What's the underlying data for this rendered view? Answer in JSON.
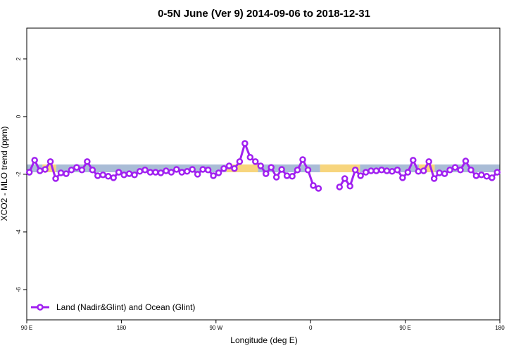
{
  "chart_data": {
    "type": "line",
    "title": "0-5N June (Ver 9)   2014-09-06 to 2018-12-31",
    "x_label": "Longitude (deg E)",
    "y_label": "XCO2 - MLO trend (ppm)",
    "xlim": [
      90,
      540
    ],
    "ylim": [
      -7.05,
      3.07
    ],
    "xticks": [
      {
        "value": 90,
        "label": "90 E"
      },
      {
        "value": 180,
        "label": "180"
      },
      {
        "value": 270,
        "label": "90 W"
      },
      {
        "value": 360,
        "label": "0"
      },
      {
        "value": 450,
        "label": "90 E"
      },
      {
        "value": 540,
        "label": "180"
      }
    ],
    "yticks": [
      -6,
      -4,
      -2,
      0,
      2
    ],
    "legend": "bottom-left",
    "ribbon": {
      "ylim": [
        -1.66,
        -1.93
      ],
      "segments": [
        {
          "xlim": [
            90,
            105
          ],
          "color": "#a9bcd6"
        },
        {
          "xlim": [
            105,
            118
          ],
          "color": "#f7d57d"
        },
        {
          "xlim": [
            118,
            280
          ],
          "color": "#a9bcd6"
        },
        {
          "xlim": [
            280,
            310
          ],
          "color": "#f7d57d"
        },
        {
          "xlim": [
            310,
            369
          ],
          "color": "#a9bcd6"
        },
        {
          "xlim": [
            369,
            407
          ],
          "color": "#f7d57d"
        },
        {
          "xlim": [
            407,
            463
          ],
          "color": "#a9bcd6"
        },
        {
          "xlim": [
            463,
            478
          ],
          "color": "#f7d57d"
        },
        {
          "xlim": [
            478,
            540
          ],
          "color": "#a9bcd6"
        }
      ]
    },
    "x": [
      92.5,
      97.5,
      102.5,
      107.5,
      112.5,
      117.5,
      122.5,
      127.5,
      132.5,
      137.5,
      142.5,
      147.5,
      152.5,
      157.5,
      162.5,
      167.5,
      172.5,
      177.5,
      182.5,
      187.5,
      192.5,
      197.5,
      202.5,
      207.5,
      212.5,
      217.5,
      222.5,
      227.5,
      232.5,
      237.5,
      242.5,
      247.5,
      252.5,
      257.5,
      262.5,
      267.5,
      272.5,
      277.5,
      282.5,
      287.5,
      292.5,
      297.5,
      302.5,
      307.5,
      312.5,
      317.5,
      322.5,
      327.5,
      332.5,
      337.5,
      342.5,
      347.5,
      352.5,
      357.5,
      362.5,
      367.5,
      372.5,
      377.5,
      382.5,
      387.5,
      392.5,
      397.5,
      402.5,
      407.5,
      412.5,
      417.5,
      422.5,
      427.5,
      432.5,
      437.5,
      442.5,
      447.5,
      452.5,
      457.5,
      462.5,
      467.5,
      472.5,
      477.5,
      482.5,
      487.5,
      492.5,
      497.5,
      502.5,
      507.5,
      512.5,
      517.5,
      522.5,
      527.5,
      532.5,
      537.5
    ],
    "series": [
      {
        "name": "Land (Nadir&Glint) and Ocean (Glint)",
        "color": "#a020f0",
        "values": [
          -1.93,
          -1.51,
          -1.88,
          -1.83,
          -1.56,
          -2.15,
          -1.95,
          -1.98,
          -1.85,
          -1.76,
          -1.85,
          -1.56,
          -1.85,
          -2.05,
          -2.02,
          -2.07,
          -2.12,
          -1.93,
          -2.02,
          -1.98,
          -2.02,
          -1.9,
          -1.85,
          -1.93,
          -1.93,
          -1.95,
          -1.88,
          -1.93,
          -1.83,
          -1.93,
          -1.9,
          -1.83,
          -2.0,
          -1.83,
          -1.85,
          -2.05,
          -1.95,
          -1.8,
          -1.71,
          -1.8,
          -1.56,
          -0.93,
          -1.41,
          -1.56,
          -1.71,
          -1.98,
          -1.76,
          -2.1,
          -1.83,
          -2.05,
          -2.07,
          -1.85,
          -1.49,
          -1.85,
          -2.39,
          -2.49,
          null,
          null,
          null,
          -2.44,
          -2.15,
          -2.41,
          -1.85,
          -2.05,
          -1.93,
          -1.88,
          -1.88,
          -1.85,
          -1.88,
          -1.9,
          -1.85,
          -2.12,
          -1.93,
          -1.51,
          -1.9,
          -1.88,
          -1.56,
          -2.15,
          -1.95,
          -1.98,
          -1.85,
          -1.76,
          -1.85,
          -1.54,
          -1.85,
          -2.05,
          -2.02,
          -2.07,
          -2.12,
          -1.93
        ]
      }
    ]
  }
}
